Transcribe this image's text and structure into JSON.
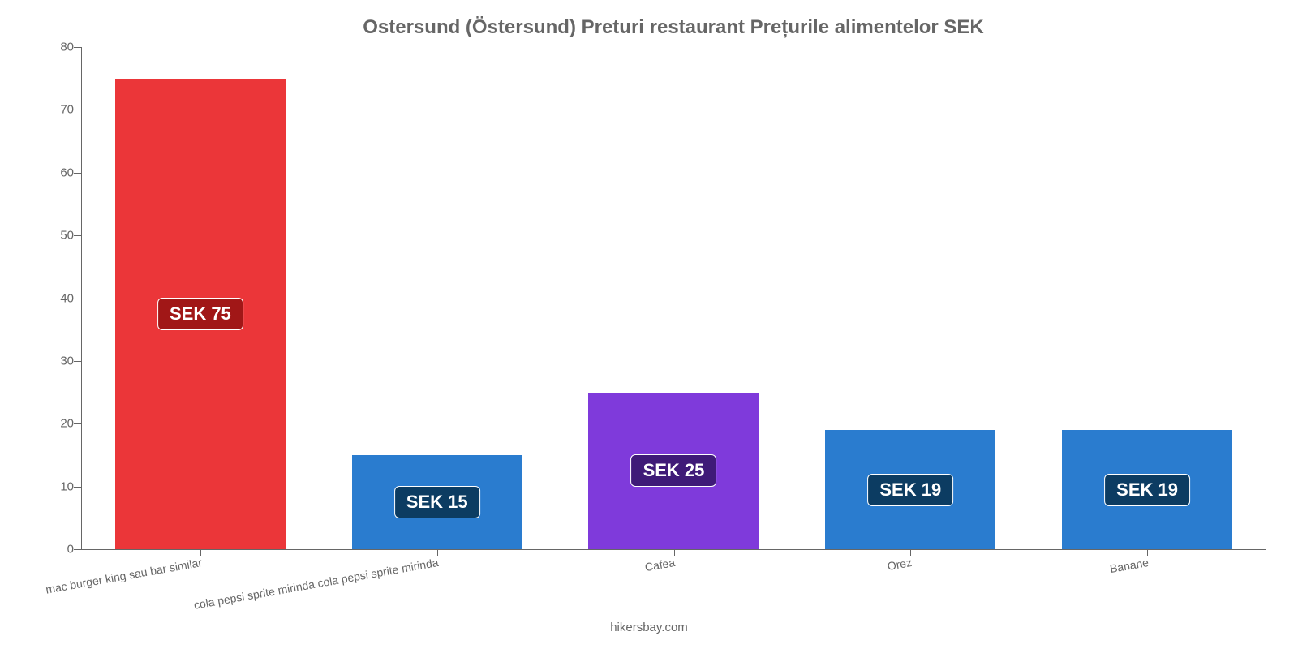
{
  "chart": {
    "type": "bar",
    "title": "Ostersund (Östersund) Preturi restaurant Prețurile alimentelor SEK",
    "title_fontsize": 24,
    "title_color": "#666666",
    "attribution": "hikersbay.com",
    "attribution_fontsize": 15,
    "background_color": "#ffffff",
    "axis_color": "#666666",
    "ylim": [
      0,
      80
    ],
    "ytick_step": 10,
    "yticks": [
      0,
      10,
      20,
      30,
      40,
      50,
      60,
      70,
      80
    ],
    "ytick_fontsize": 15,
    "xtick_fontsize": 14,
    "xtick_rotation_deg": -10,
    "bar_width_ratio": 0.72,
    "label_fontsize": 22,
    "categories": [
      "mac burger king sau bar similar",
      "cola pepsi sprite mirinda cola pepsi sprite mirinda",
      "Cafea",
      "Orez",
      "Banane"
    ],
    "values": [
      75,
      15,
      25,
      19,
      19
    ],
    "value_labels": [
      "SEK 75",
      "SEK 15",
      "SEK 25",
      "SEK 19",
      "SEK 19"
    ],
    "bar_colors": [
      "#eb3639",
      "#2a7ccf",
      "#7f3adb",
      "#2a7ccf",
      "#2a7ccf"
    ],
    "badge_colors": [
      "#a11717",
      "#0c3c62",
      "#3f1a78",
      "#0c3c62",
      "#0c3c62"
    ],
    "badge_text_color": "#ffffff"
  }
}
